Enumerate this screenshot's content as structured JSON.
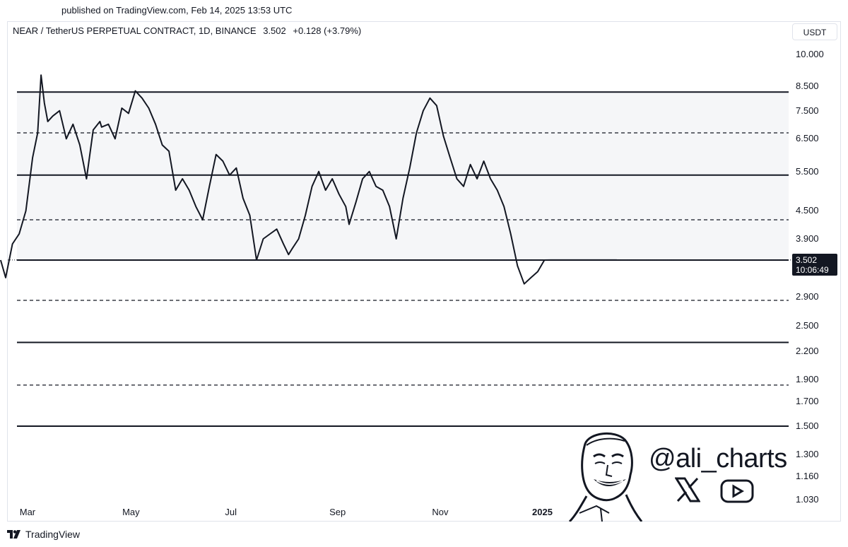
{
  "header": {
    "published": "published on TradingView.com, Feb 14, 2025 13:53 UTC",
    "symbol": "NEAR / TetherUS PERPETUAL CONTRACT, 1D, BINANCE",
    "last_price": "3.502",
    "change": "+0.128 (+3.79%)"
  },
  "currency_label": "USDT",
  "price_tag": {
    "price": "3.502",
    "countdown": "10:06:49"
  },
  "brand": {
    "name": "TradingView"
  },
  "watermark": {
    "handle": "@ali_charts",
    "icons": [
      "x-logo-icon",
      "youtube-icon",
      "avatar-illustration"
    ]
  },
  "colors": {
    "line": "#131722",
    "channel_fill": "#f5f6f8",
    "price_tag_bg": "#131722"
  },
  "chart_data": {
    "type": "line",
    "scale": "log",
    "ylim": [
      1.0,
      10.5
    ],
    "x_tick_labels": [
      "Mar",
      "May",
      "Jul",
      "Sep",
      "Nov",
      "2025"
    ],
    "x_tick_dates": [
      "2024-03-01",
      "2024-05-01",
      "2024-07-01",
      "2024-09-01",
      "2024-11-01",
      "2025-01-01"
    ],
    "y_tick_labels": [
      "10.000",
      "8.500",
      "7.500",
      "6.500",
      "5.500",
      "4.500",
      "3.900",
      "2.900",
      "2.500",
      "2.200",
      "1.900",
      "1.700",
      "1.500",
      "1.300",
      "1.160",
      "1.030"
    ],
    "y_ticks": [
      10.0,
      8.5,
      7.5,
      6.5,
      5.5,
      4.5,
      3.9,
      2.9,
      2.5,
      2.2,
      1.9,
      1.7,
      1.5,
      1.3,
      1.16,
      1.03
    ],
    "horizontal_levels": [
      {
        "value": 8.25,
        "style": "solid"
      },
      {
        "value": 6.7,
        "style": "dashed"
      },
      {
        "value": 5.4,
        "style": "solid"
      },
      {
        "value": 4.3,
        "style": "dashed"
      },
      {
        "value": 3.5,
        "style": "solid"
      },
      {
        "value": 2.85,
        "style": "dashed"
      },
      {
        "value": 2.3,
        "style": "solid"
      },
      {
        "value": 1.85,
        "style": "dashed"
      },
      {
        "value": 1.5,
        "style": "solid"
      }
    ],
    "channel": [
      3.5,
      8.25
    ],
    "series": [
      {
        "dates": [
          "2024-02-14",
          "2024-02-17",
          "2024-02-21",
          "2024-02-25",
          "2024-02-29",
          "2024-03-04",
          "2024-03-07",
          "2024-03-09",
          "2024-03-11",
          "2024-03-13",
          "2024-03-16",
          "2024-03-20",
          "2024-03-24",
          "2024-03-28",
          "2024-04-01",
          "2024-04-05",
          "2024-04-09",
          "2024-04-13",
          "2024-04-14",
          "2024-04-18",
          "2024-04-22",
          "2024-04-26",
          "2024-04-30",
          "2024-05-04",
          "2024-05-08",
          "2024-05-12",
          "2024-05-16",
          "2024-05-20",
          "2024-05-24",
          "2024-05-28",
          "2024-06-01",
          "2024-06-05",
          "2024-06-09",
          "2024-06-13",
          "2024-06-17",
          "2024-06-21",
          "2024-06-25",
          "2024-06-29",
          "2024-07-03",
          "2024-07-07",
          "2024-07-11",
          "2024-07-15",
          "2024-07-19",
          "2024-07-23",
          "2024-07-27",
          "2024-07-31",
          "2024-08-03",
          "2024-08-05",
          "2024-08-09",
          "2024-08-13",
          "2024-08-17",
          "2024-08-21",
          "2024-08-25",
          "2024-08-29",
          "2024-09-02",
          "2024-09-06",
          "2024-09-08",
          "2024-09-12",
          "2024-09-16",
          "2024-09-20",
          "2024-09-24",
          "2024-09-28",
          "2024-10-02",
          "2024-10-06",
          "2024-10-10",
          "2024-10-14",
          "2024-10-18",
          "2024-10-22",
          "2024-10-26",
          "2024-10-30",
          "2024-11-03",
          "2024-11-07",
          "2024-11-11",
          "2024-11-15",
          "2024-11-19",
          "2024-11-23",
          "2024-11-27",
          "2024-12-01",
          "2024-12-05",
          "2024-12-09",
          "2024-12-13",
          "2024-12-17",
          "2024-12-21",
          "2024-12-25",
          "2024-12-29",
          "2025-01-02",
          "2025-01-06",
          "2025-01-10",
          "2025-01-14",
          "2025-01-18",
          "2025-01-22",
          "2025-01-26",
          "2025-01-30",
          "2025-02-03",
          "2025-02-06",
          "2025-02-08",
          "2025-02-10",
          "2025-02-12",
          "2025-02-14"
        ],
        "values": [
          3.5,
          3.2,
          3.8,
          4.0,
          4.5,
          5.9,
          6.7,
          9.0,
          7.8,
          7.1,
          7.3,
          7.5,
          6.5,
          7.0,
          6.3,
          5.3,
          6.8,
          7.1,
          6.9,
          7.0,
          6.5,
          7.6,
          7.4,
          8.3,
          8.0,
          7.6,
          7.0,
          6.3,
          6.1,
          5.0,
          5.3,
          5.0,
          4.6,
          4.3,
          5.1,
          6.0,
          5.8,
          5.4,
          5.6,
          4.8,
          4.4,
          3.5,
          3.9,
          4.0,
          4.1,
          3.8,
          3.6,
          3.7,
          3.9,
          4.4,
          5.1,
          5.5,
          5.0,
          5.3,
          4.9,
          4.6,
          4.2,
          4.7,
          5.3,
          5.5,
          5.1,
          5.0,
          4.6,
          3.9,
          4.8,
          5.6,
          6.7,
          7.5,
          8.0,
          7.7,
          6.6,
          5.9,
          5.3,
          5.1,
          5.7,
          5.3,
          5.8,
          5.3,
          5.0,
          4.6,
          4.0,
          3.4,
          3.1,
          3.2,
          3.3,
          3.5,
          3.502,
          3.502,
          3.502,
          3.502,
          3.502,
          3.502,
          3.502,
          3.502,
          3.502,
          3.502,
          3.502,
          3.502,
          3.502
        ]
      }
    ]
  }
}
